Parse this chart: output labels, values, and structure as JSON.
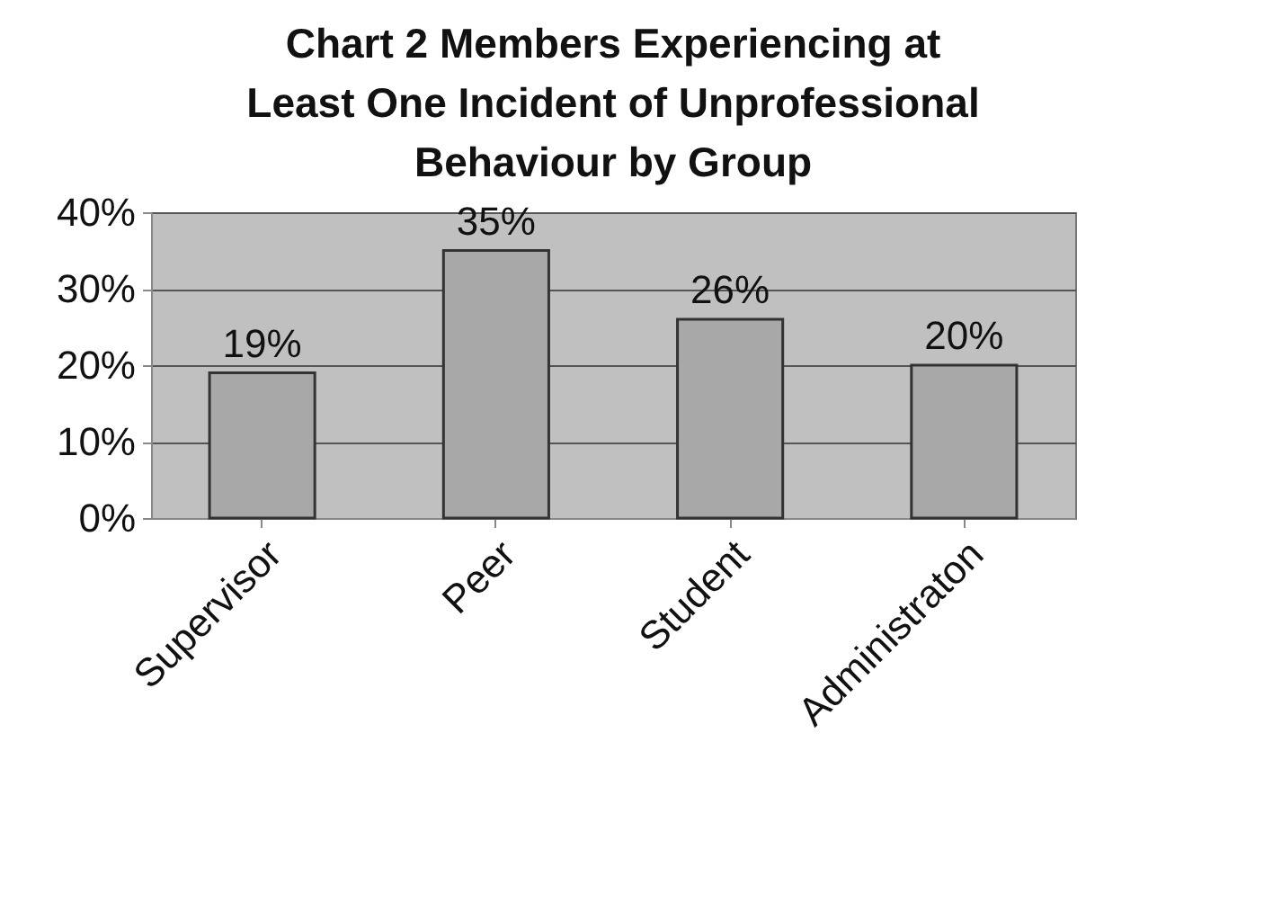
{
  "chart_data": {
    "type": "bar",
    "title": "Chart 2   Members Experiencing at Least One Incident of Unprofessional Behaviour by Group",
    "categories": [
      "Supervisor",
      "Peer",
      "Student",
      "Administraton"
    ],
    "values": [
      19,
      35,
      26,
      20
    ],
    "value_labels": [
      "19%",
      "35%",
      "26%",
      "20%"
    ],
    "color": "#a8a8a8",
    "ylim": [
      0,
      40
    ],
    "yticks": [
      {
        "value": 0,
        "label": "0%"
      },
      {
        "value": 10,
        "label": "10%"
      },
      {
        "value": 20,
        "label": "20%"
      },
      {
        "value": 30,
        "label": "30%"
      },
      {
        "value": 40,
        "label": "40%"
      }
    ],
    "grid": "y"
  }
}
